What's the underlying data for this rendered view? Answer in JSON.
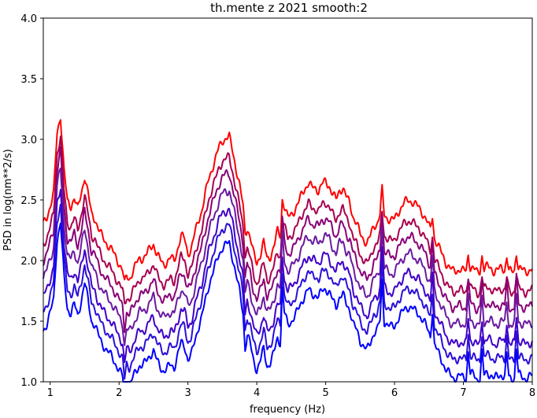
{
  "chart_data": {
    "type": "line",
    "title": "th.mente z 2021 smooth:2",
    "xlabel": "frequency (Hz)",
    "ylabel": "PSD in log(nm**2/s)",
    "xlim": [
      0.9,
      8.0
    ],
    "ylim": [
      1.0,
      4.0
    ],
    "xticks": [
      1,
      2,
      3,
      4,
      5,
      6,
      7,
      8
    ],
    "yticks": [
      1.0,
      1.5,
      2.0,
      2.5,
      3.0,
      3.5,
      4.0
    ],
    "xtick_labels": [
      "1",
      "2",
      "3",
      "4",
      "5",
      "6",
      "7",
      "8"
    ],
    "ytick_labels": [
      "1.0",
      "1.5",
      "2.0",
      "2.5",
      "3.0",
      "3.5",
      "4.0"
    ],
    "grid": false,
    "legend": "none",
    "base_x": [
      0.9,
      0.95,
      1.0,
      1.05,
      1.1,
      1.15,
      1.2,
      1.25,
      1.3,
      1.35,
      1.4,
      1.45,
      1.5,
      1.55,
      1.6,
      1.65,
      1.7,
      1.75,
      1.8,
      1.85,
      1.9,
      1.95,
      2.0,
      2.05,
      2.1,
      2.15,
      2.2,
      2.25,
      2.3,
      2.35,
      2.4,
      2.45,
      2.5,
      2.55,
      2.6,
      2.65,
      2.7,
      2.75,
      2.8,
      2.85,
      2.9,
      2.95,
      3.0,
      3.05,
      3.1,
      3.15,
      3.2,
      3.25,
      3.3,
      3.35,
      3.4,
      3.45,
      3.5,
      3.55,
      3.6,
      3.65,
      3.7,
      3.75,
      3.8,
      3.85,
      3.9,
      3.95,
      4.0,
      4.05,
      4.1,
      4.15,
      4.2,
      4.25,
      4.3,
      4.35,
      4.4,
      4.45,
      4.5,
      4.55,
      4.6,
      4.65,
      4.7,
      4.75,
      4.8,
      4.85,
      4.9,
      4.95,
      5.0,
      5.05,
      5.1,
      5.15,
      5.2,
      5.25,
      5.3,
      5.35,
      5.4,
      5.45,
      5.5,
      5.55,
      5.6,
      5.65,
      5.7,
      5.75,
      5.8,
      5.85,
      5.9,
      5.95,
      6.0,
      6.05,
      6.1,
      6.15,
      6.2,
      6.25,
      6.3,
      6.35,
      6.4,
      6.45,
      6.5,
      6.55,
      6.6,
      6.65,
      6.7,
      6.75,
      6.8,
      6.85,
      6.9,
      6.95,
      7.0,
      7.05,
      7.1,
      7.15,
      7.2,
      7.25,
      7.3,
      7.35,
      7.4,
      7.45,
      7.5,
      7.55,
      7.6,
      7.65,
      7.7,
      7.75,
      7.8,
      7.85,
      7.9,
      7.95,
      8.0
    ],
    "base_y": [
      2.3,
      2.36,
      2.45,
      2.55,
      3.05,
      3.2,
      2.75,
      2.48,
      2.45,
      2.52,
      2.42,
      2.55,
      2.7,
      2.55,
      2.38,
      2.35,
      2.26,
      2.2,
      2.16,
      2.12,
      2.08,
      2.03,
      1.98,
      1.92,
      1.88,
      1.85,
      1.91,
      1.97,
      2.02,
      2.02,
      2.05,
      2.1,
      2.14,
      2.05,
      2.0,
      1.97,
      1.99,
      2.02,
      2.0,
      2.1,
      2.2,
      2.18,
      2.06,
      2.1,
      2.22,
      2.33,
      2.41,
      2.54,
      2.67,
      2.76,
      2.84,
      2.93,
      2.99,
      3.01,
      3.02,
      2.9,
      2.76,
      2.62,
      2.45,
      2.29,
      2.2,
      2.06,
      1.98,
      2.05,
      2.15,
      2.01,
      2.04,
      2.12,
      2.24,
      2.2,
      2.45,
      2.35,
      2.38,
      2.42,
      2.47,
      2.54,
      2.6,
      2.64,
      2.6,
      2.6,
      2.58,
      2.63,
      2.65,
      2.62,
      2.55,
      2.5,
      2.58,
      2.6,
      2.52,
      2.48,
      2.36,
      2.3,
      2.22,
      2.18,
      2.14,
      2.2,
      2.29,
      2.31,
      2.4,
      2.38,
      2.35,
      2.33,
      2.34,
      2.4,
      2.44,
      2.48,
      2.5,
      2.49,
      2.46,
      2.44,
      2.4,
      2.35,
      2.28,
      2.22,
      2.16,
      2.1,
      2.04,
      1.98,
      1.94,
      1.91,
      1.92,
      1.93,
      1.91,
      1.92,
      1.95,
      1.93,
      1.9,
      1.92,
      1.93,
      1.95,
      1.94,
      1.91,
      1.92,
      1.94,
      1.93,
      1.92,
      1.9,
      1.93,
      1.94,
      1.92,
      1.91,
      1.92,
      1.93
    ],
    "series": [
      {
        "color": "#ff0000",
        "offset": 0.0
      },
      {
        "color": "#a8004f",
        "offset": -0.17
      },
      {
        "color": "#880077",
        "offset": -0.3
      },
      {
        "color": "#6a1aa0",
        "offset": -0.44
      },
      {
        "color": "#4000c8",
        "offset": -0.6
      },
      {
        "color": "#2a10d8",
        "offset": -0.73
      },
      {
        "color": "#0000ff",
        "offset": -0.88
      }
    ],
    "spikes": [
      {
        "x": 2.08,
        "h": -0.15
      },
      {
        "x": 3.83,
        "h": -0.2
      },
      {
        "x": 4.37,
        "h": 0.35
      },
      {
        "x": 5.82,
        "h": 0.32
      },
      {
        "x": 6.55,
        "h": 0.25
      },
      {
        "x": 7.07,
        "h": 0.2
      },
      {
        "x": 7.27,
        "h": 0.2
      },
      {
        "x": 7.63,
        "h": 0.18
      },
      {
        "x": 7.77,
        "h": 0.22
      }
    ]
  }
}
